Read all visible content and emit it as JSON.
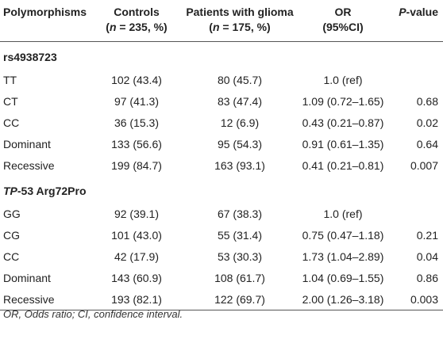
{
  "headers": {
    "col1": "Polymorphisms",
    "col2_line1": "Controls",
    "col2_line2_pre": "(",
    "col2_n": "n",
    "col2_line2_post": " = 235, %)",
    "col3_line1": "Patients with glioma",
    "col3_line2_pre": "(",
    "col3_n": "n",
    "col3_line2_post": " = 175, %)",
    "col4_line1": "OR",
    "col4_line2": "(95%CI)",
    "col5_p": "P",
    "col5_rest": "-value"
  },
  "sections": [
    {
      "title_italic": "",
      "title_rest": "rs4938723",
      "rows": [
        {
          "genotype": "TT",
          "controls": "102 (43.4)",
          "patients": "80 (45.7)",
          "or": "1.0 (ref)",
          "p": ""
        },
        {
          "genotype": "CT",
          "controls": "97 (41.3)",
          "patients": "83 (47.4)",
          "or": "1.09 (0.72–1.65)",
          "p": "0.68"
        },
        {
          "genotype": "CC",
          "controls": "36 (15.3)",
          "patients": "12 (6.9)",
          "or": "0.43 (0.21–0.87)",
          "p": "0.02"
        },
        {
          "genotype": "Dominant",
          "controls": "133 (56.6)",
          "patients": "95 (54.3)",
          "or": "0.91 (0.61–1.35)",
          "p": "0.64"
        },
        {
          "genotype": "Recessive",
          "controls": "199 (84.7)",
          "patients": "163 (93.1)",
          "or": "0.41 (0.21–0.81)",
          "p": "0.007"
        }
      ]
    },
    {
      "title_italic": "TP",
      "title_rest": "-53 Arg72Pro",
      "rows": [
        {
          "genotype": "GG",
          "controls": "92 (39.1)",
          "patients": "67 (38.3)",
          "or": "1.0 (ref)",
          "p": ""
        },
        {
          "genotype": "CG",
          "controls": "101 (43.0)",
          "patients": "55 (31.4)",
          "or": "0.75 (0.47–1.18)",
          "p": "0.21"
        },
        {
          "genotype": "CC",
          "controls": "42 (17.9)",
          "patients": "53 (30.3)",
          "or": "1.73 (1.04–2.89)",
          "p": "0.04"
        },
        {
          "genotype": "Dominant",
          "controls": "143 (60.9)",
          "patients": "108 (61.7)",
          "or": "1.04 (0.69–1.55)",
          "p": "0.86"
        },
        {
          "genotype": "Recessive",
          "controls": "193 (82.1)",
          "patients": "122 (69.7)",
          "or": "2.00 (1.26–3.18)",
          "p": "0.003"
        }
      ]
    }
  ],
  "footnote": "OR, Odds ratio; CI, confidence interval."
}
